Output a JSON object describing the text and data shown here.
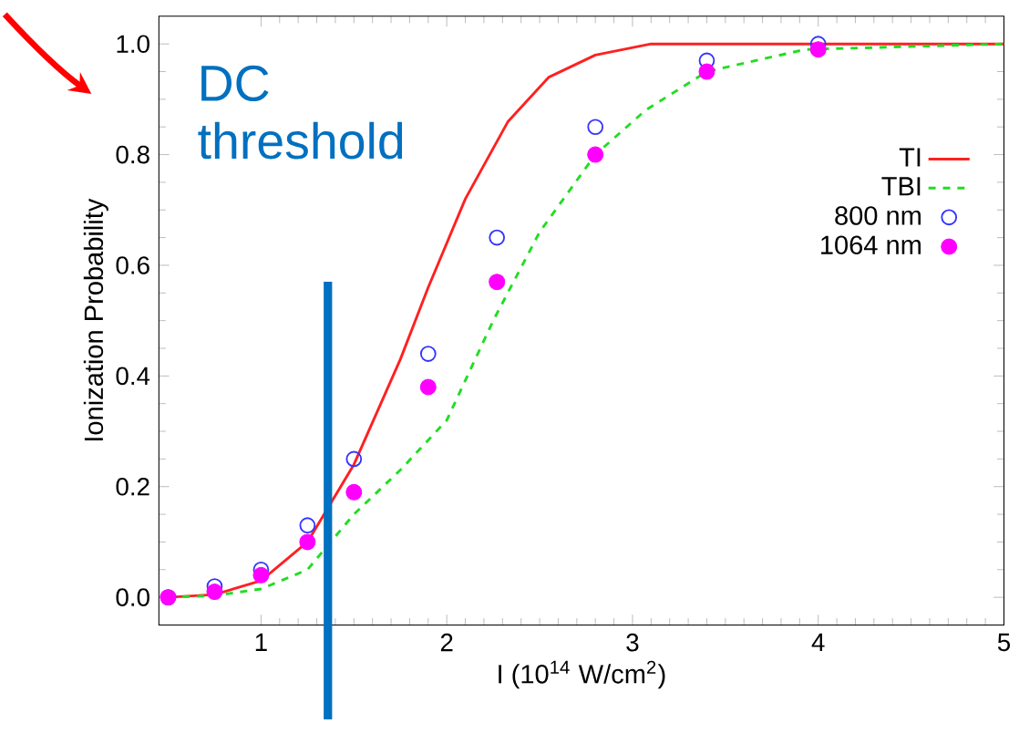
{
  "chart_data": {
    "type": "line",
    "xlabel": "I (10$^{14}$ W/cm$^{2}$)",
    "ylabel": "Ionization Probability",
    "xlim": [
      0.45,
      5.0
    ],
    "ylim": [
      -0.05,
      1.05
    ],
    "xticks": [
      1,
      2,
      3,
      4,
      5
    ],
    "yticks": [
      {
        "value": 0,
        "label": "0.0"
      },
      {
        "value": 0.2,
        "label": "0.2"
      },
      {
        "value": 0.4,
        "label": "0.4"
      },
      {
        "value": 0.6,
        "label": "0.6"
      },
      {
        "value": 0.8,
        "label": "0.8"
      },
      {
        "value": 1.0,
        "label": "1.0"
      }
    ],
    "legend": "top right",
    "series": [
      {
        "name": "TI",
        "type": "line",
        "color": "#ff2020",
        "line_style": "solid",
        "marker": "none",
        "x": [
          0.5,
          0.75,
          1.0,
          1.25,
          1.5,
          1.75,
          1.9,
          2.1,
          2.33,
          2.55,
          2.8,
          3.1,
          5.0
        ],
        "values": [
          0,
          0.005,
          0.03,
          0.1,
          0.24,
          0.43,
          0.56,
          0.72,
          0.86,
          0.94,
          0.98,
          1.0,
          1.0
        ]
      },
      {
        "name": "TBI",
        "type": "line",
        "color": "#22dd22",
        "line_style": "dashed",
        "marker": "none",
        "x": [
          0.5,
          0.75,
          1.0,
          1.25,
          1.5,
          1.75,
          2.0,
          2.25,
          2.5,
          2.8,
          3.07,
          3.4,
          3.93,
          5.0
        ],
        "values": [
          0,
          0.003,
          0.015,
          0.05,
          0.15,
          0.23,
          0.32,
          0.5,
          0.66,
          0.8,
          0.88,
          0.95,
          0.99,
          1.0
        ]
      },
      {
        "name": "800 nm",
        "type": "scatter",
        "color": "#3333ff",
        "marker": "circle",
        "x": [
          0.5,
          0.75,
          1.0,
          1.25,
          1.5,
          1.9,
          2.27,
          2.8,
          3.4,
          4.0
        ],
        "values": [
          0,
          0.02,
          0.05,
          0.13,
          0.25,
          0.44,
          0.65,
          0.85,
          0.97,
          1.0
        ]
      },
      {
        "name": "1064 nm",
        "type": "scatter",
        "color": "#ff00ff",
        "marker": "circle",
        "x": [
          0.5,
          0.75,
          1.0,
          1.25,
          1.5,
          1.9,
          2.27,
          2.8,
          3.4,
          4.0
        ],
        "values": [
          0,
          0.01,
          0.04,
          0.1,
          0.19,
          0.38,
          0.57,
          0.8,
          0.95,
          0.99
        ]
      }
    ],
    "ref_lines": [
      {
        "axis": "x",
        "value": 1.36,
        "label": "DC threshold",
        "color": "#0070c0"
      }
    ]
  }
}
